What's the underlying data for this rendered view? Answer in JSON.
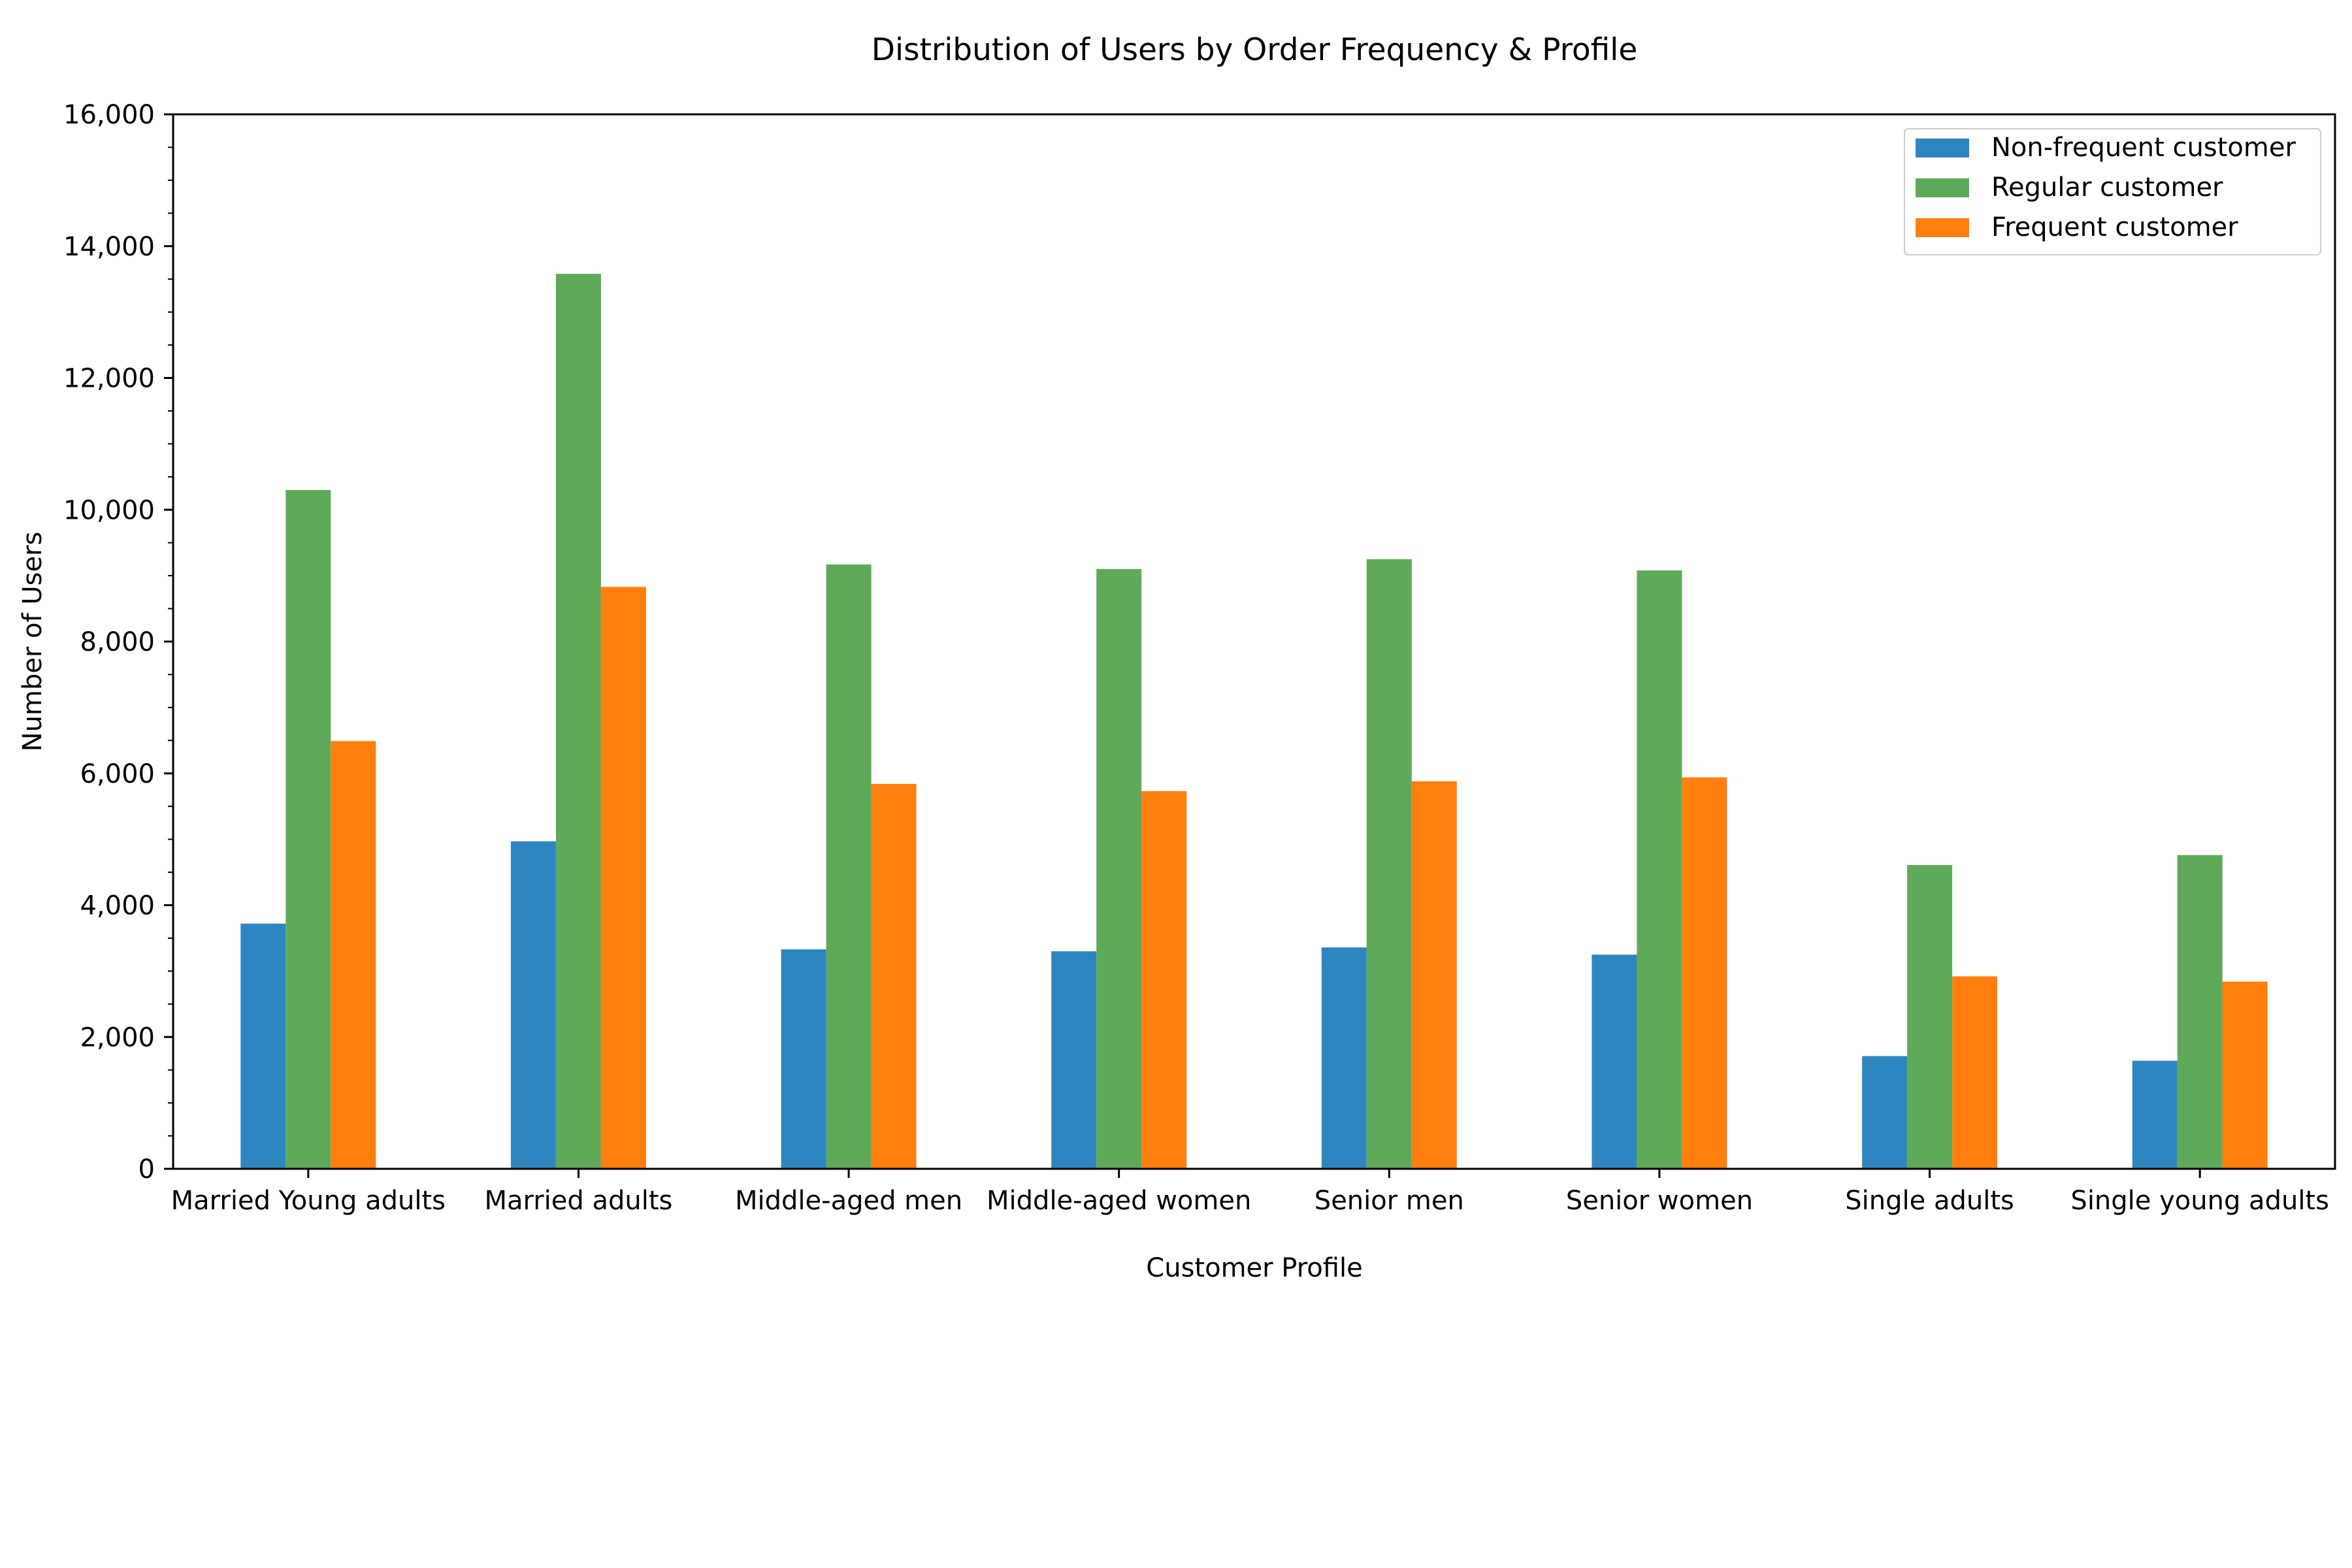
{
  "chart_data": {
    "type": "bar",
    "title": "Distribution of Users by Order Frequency & Profile",
    "xlabel": "Customer Profile",
    "ylabel": "Number of Users",
    "ylim": [
      0,
      16000
    ],
    "yticks": [
      "0",
      "2,000",
      "4,000",
      "6,000",
      "8,000",
      "10,000",
      "12,000",
      "14,000",
      "16,000"
    ],
    "grid": false,
    "legend_position": "top-right",
    "categories": [
      "Married Young adults",
      "Married adults",
      "Middle-aged men",
      "Middle-aged women",
      "Senior men",
      "Senior women",
      "Single adults",
      "Single young adults"
    ],
    "series": [
      {
        "name": "Non-frequent customer",
        "color": "#2e86c1",
        "values": [
          3720,
          4970,
          3330,
          3300,
          3360,
          3250,
          1710,
          1640
        ]
      },
      {
        "name": "Regular customer",
        "color": "#5faa58",
        "values": [
          10300,
          13580,
          9170,
          9100,
          9250,
          9080,
          4610,
          4760
        ]
      },
      {
        "name": "Frequent customer",
        "color": "#ff7f0e",
        "values": [
          6490,
          8830,
          5840,
          5730,
          5880,
          5940,
          2920,
          2840
        ]
      }
    ]
  }
}
